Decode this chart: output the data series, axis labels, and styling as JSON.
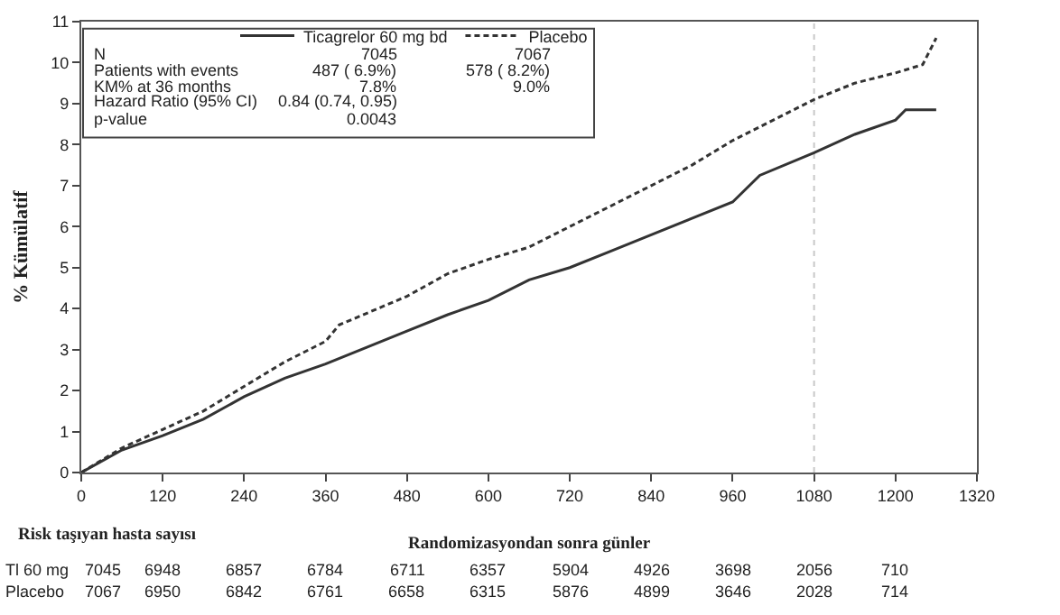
{
  "chart_data": {
    "type": "line",
    "xlabel": "Randomizasyondan sonra günler",
    "ylabel": "% Kümülatif",
    "xlim": [
      0,
      1320
    ],
    "xticks": [
      0,
      120,
      240,
      360,
      480,
      600,
      720,
      840,
      960,
      1080,
      1200,
      1320
    ],
    "ylim": [
      0,
      11
    ],
    "yticks": [
      0,
      1,
      2,
      3,
      4,
      5,
      6,
      7,
      8,
      9,
      10,
      11
    ],
    "grid": false,
    "legend": "top left",
    "marker": "none",
    "ref_lines": [
      {
        "axis": "x",
        "value": 1080,
        "color": "#c8c8c8",
        "line_style": "dotted"
      }
    ],
    "series": [
      {
        "name": "Ticagrelor 60 mg bd",
        "color": "#333333",
        "line_style": "solid",
        "x": [
          0,
          60,
          120,
          180,
          240,
          300,
          360,
          420,
          480,
          540,
          600,
          660,
          720,
          780,
          840,
          900,
          960,
          1000,
          1080,
          1140,
          1200,
          1215,
          1260
        ],
        "values": [
          0,
          0.55,
          0.9,
          1.3,
          1.85,
          2.3,
          2.65,
          3.05,
          3.45,
          3.85,
          4.2,
          4.7,
          5.0,
          5.4,
          5.8,
          6.2,
          6.6,
          7.25,
          7.8,
          8.25,
          8.6,
          8.85,
          8.85
        ]
      },
      {
        "name": "Placebo",
        "color": "#333333",
        "line_style": "dashed",
        "x": [
          0,
          60,
          120,
          180,
          240,
          300,
          360,
          380,
          480,
          540,
          600,
          660,
          720,
          780,
          840,
          900,
          960,
          1020,
          1080,
          1140,
          1200,
          1240,
          1260
        ],
        "values": [
          0,
          0.6,
          1.05,
          1.5,
          2.1,
          2.7,
          3.2,
          3.6,
          4.3,
          4.85,
          5.2,
          5.5,
          6.0,
          6.5,
          7.0,
          7.5,
          8.1,
          8.6,
          9.1,
          9.5,
          9.75,
          9.95,
          10.6
        ]
      }
    ],
    "annotations": [
      "N",
      "7045",
      "7067",
      "Patients with events",
      "487 ( 6.9%)",
      "578 ( 8.2%)",
      "KM% at 36 months",
      "7.8%",
      "9.0%",
      "Hazard Ratio (95% CI)",
      "0.84 (0.74, 0.95)",
      "p-value",
      "0.0043",
      "Risk taşıyan hasta sayısı",
      "Tl 60 mg",
      "7045",
      "6948",
      "6857",
      "6784",
      "6711",
      "6357",
      "5904",
      "4926",
      "3698",
      "2056",
      "710",
      "Placebo",
      "7067",
      "6950",
      "6842",
      "6761",
      "6658",
      "6315",
      "5876",
      "4899",
      "3646",
      "2028",
      "714"
    ]
  }
}
